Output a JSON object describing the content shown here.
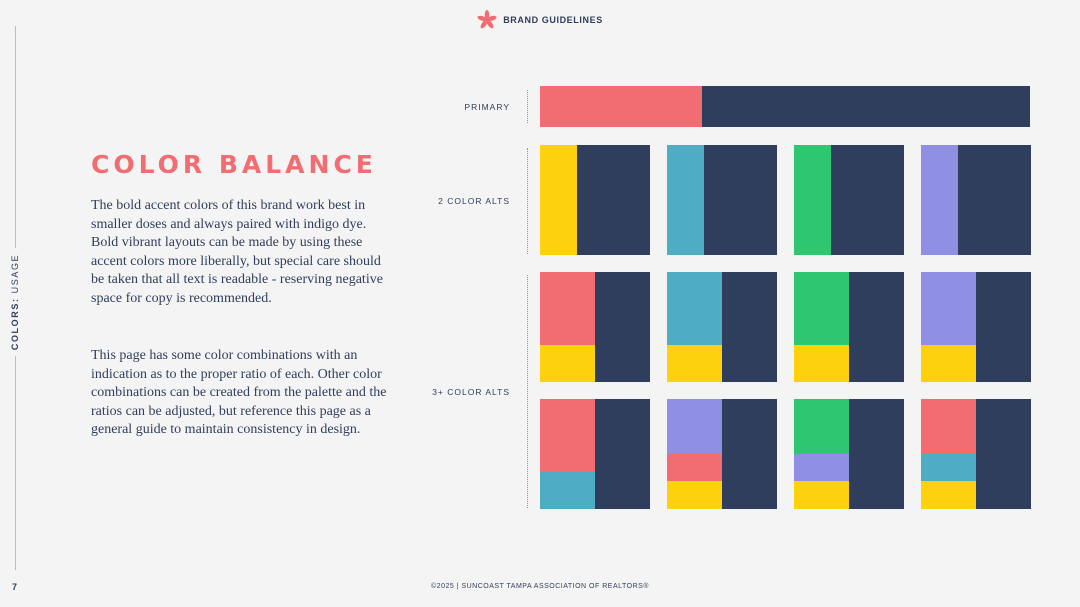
{
  "header": {
    "title": "BRAND GUIDELINES",
    "logo_icon": "starburst-flower-icon",
    "logo_color": "#f16d72"
  },
  "sidebar": {
    "label_bold": "COLORS:",
    "label_rest": " USAGE",
    "page_number": "7"
  },
  "main": {
    "heading": "COLOR BALANCE",
    "paragraph_1": "The bold accent colors of this brand work best in smaller doses and always paired with indigo dye. Bold vibrant layouts can be made by using these accent colors more liberally, but special care should be taken that all text is readable - reserving negative space for copy is recommended.",
    "paragraph_2": "This page has some color combinations with an indication as to the proper ratio of each. Other color combinations can be created from the palette and the ratios can be adjusted, but reference this page as a general guide to maintain consistency in design."
  },
  "palette": {
    "indigo": "#2e3e5c",
    "coral": "#f16d72",
    "yellow": "#fdd10e",
    "teal": "#4fadc3",
    "green": "#2ec76f",
    "lavender": "#8f8fe3"
  },
  "rows": {
    "primary_label": "PRIMARY",
    "two_color_label": "2 COLOR ALTS",
    "three_color_label": "3+ COLOR ALTS"
  },
  "swatches": {
    "primary": {
      "accent": "coral",
      "accent_fraction": 0.33
    },
    "two_color": [
      {
        "accent": "yellow"
      },
      {
        "accent": "teal"
      },
      {
        "accent": "green"
      },
      {
        "accent": "lavender"
      }
    ],
    "three_color_row1": [
      {
        "stack": [
          "coral",
          "yellow"
        ]
      },
      {
        "stack": [
          "teal",
          "yellow"
        ]
      },
      {
        "stack": [
          "green",
          "yellow"
        ]
      },
      {
        "stack": [
          "lavender",
          "yellow"
        ]
      }
    ],
    "three_color_row2": [
      {
        "stack": [
          "coral",
          "teal"
        ]
      },
      {
        "stack": [
          "lavender",
          "coral",
          "yellow"
        ]
      },
      {
        "stack": [
          "green",
          "lavender",
          "yellow"
        ]
      },
      {
        "stack": [
          "coral",
          "teal",
          "yellow"
        ]
      }
    ]
  },
  "footer": {
    "text": "©2025 | SUNCOAST TAMPA ASSOCIATION OF REALTORS®"
  }
}
